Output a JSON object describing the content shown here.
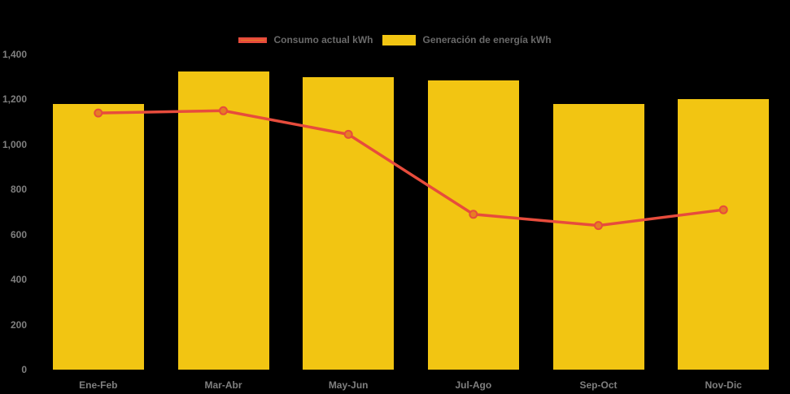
{
  "legend": {
    "items": [
      {
        "label": "Consumo actual kWh",
        "swatch_fill": "#E67E22",
        "swatch_border": "#E74C3C",
        "swatch_type": "line-marker"
      },
      {
        "label": "Generación de energía kWh",
        "swatch_fill": "#F2C512",
        "swatch_border": "#F2C512",
        "swatch_type": "bar"
      }
    ]
  },
  "chart_data": {
    "type": "bar",
    "subtype": "bar-with-line-overlay",
    "categories": [
      "Ene-Feb",
      "Mar-Abr",
      "May-Jun",
      "Jul-Ago",
      "Sep-Oct",
      "Nov-Dic"
    ],
    "series": [
      {
        "name": "Generación de energía kWh",
        "type": "bar",
        "color": "#F2C512",
        "values": [
          1180,
          1325,
          1300,
          1285,
          1180,
          1200
        ]
      },
      {
        "name": "Consumo actual kWh",
        "type": "line",
        "color": "#E74C3C",
        "marker_fill": "#E67E22",
        "marker_border": "#E74C3C",
        "values": [
          1140,
          1150,
          1045,
          690,
          640,
          710
        ]
      }
    ],
    "title": "",
    "xlabel": "",
    "ylabel": "",
    "ylim": [
      0,
      1400
    ],
    "yticks": [
      {
        "value": 1400,
        "label": "1,400"
      },
      {
        "value": 1200,
        "label": "1,200"
      },
      {
        "value": 1000,
        "label": "1,000"
      },
      {
        "value": 800,
        "label": "800"
      },
      {
        "value": 600,
        "label": "600"
      },
      {
        "value": 400,
        "label": "400"
      },
      {
        "value": 200,
        "label": "200"
      },
      {
        "value": 0,
        "label": "0"
      }
    ],
    "grid": false,
    "legend_position": "top-center",
    "background": "#000000",
    "text_color": "#7F7F7F"
  }
}
